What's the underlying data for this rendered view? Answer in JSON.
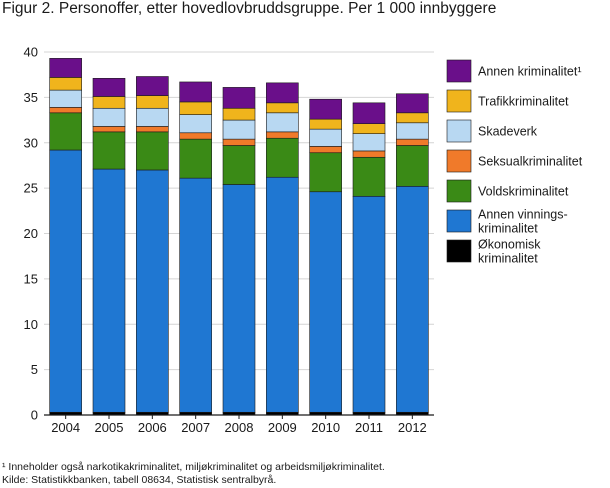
{
  "title": "Figur 2. Personoffer, etter hovedlovbruddsgruppe. Per 1 000 innbyggere",
  "footnotes": [
    "¹ Inneholder også narkotikakriminalitet, miljøkriminalitet og arbeidsmiljøkriminalitet.",
    "Kilde: Statistikkbanken, tabell 08634, Statistisk sentralbyrå."
  ],
  "chart_data": {
    "type": "bar",
    "stacked": true,
    "title": "Figur 2. Personoffer, etter hovedlovbruddsgruppe. Per 1 000 innbyggere",
    "xlabel": "",
    "ylabel": "",
    "ylim": [
      0,
      40
    ],
    "yticks": [
      0,
      5,
      10,
      15,
      20,
      25,
      30,
      35,
      40
    ],
    "grid": true,
    "legend_position": "right",
    "categories": [
      "2004",
      "2005",
      "2006",
      "2007",
      "2008",
      "2009",
      "2010",
      "2011",
      "2012"
    ],
    "series": [
      {
        "name": "Økonomisk kriminalitet",
        "label_lines": [
          "Økonomisk",
          "kriminalitet"
        ],
        "color": "#000000",
        "values": [
          0.3,
          0.3,
          0.3,
          0.3,
          0.3,
          0.3,
          0.3,
          0.3,
          0.3
        ]
      },
      {
        "name": "Annen vinnings-kriminalitet",
        "label_lines": [
          "Annen vinnings-",
          "kriminalitet"
        ],
        "color": "#1f77d2",
        "values": [
          28.9,
          26.8,
          26.7,
          25.8,
          25.1,
          25.9,
          24.3,
          23.8,
          24.9
        ]
      },
      {
        "name": "Voldskriminalitet",
        "label_lines": [
          "Voldskriminalitet"
        ],
        "color": "#3a8a16",
        "values": [
          4.1,
          4.1,
          4.2,
          4.3,
          4.3,
          4.3,
          4.3,
          4.3,
          4.5
        ]
      },
      {
        "name": "Seksualkriminalitet",
        "label_lines": [
          "Seksualkriminalitet"
        ],
        "color": "#f07a2a",
        "values": [
          0.6,
          0.6,
          0.6,
          0.7,
          0.7,
          0.7,
          0.7,
          0.7,
          0.7
        ]
      },
      {
        "name": "Skadeverk",
        "label_lines": [
          "Skadeverk"
        ],
        "color": "#b8d8f2",
        "values": [
          1.9,
          2.0,
          2.0,
          2.0,
          2.1,
          2.1,
          1.9,
          1.9,
          1.8
        ]
      },
      {
        "name": "Trafikkriminalitet",
        "label_lines": [
          "Trafikkriminalitet"
        ],
        "color": "#f0b41c",
        "values": [
          1.4,
          1.3,
          1.4,
          1.4,
          1.3,
          1.1,
          1.1,
          1.1,
          1.1
        ]
      },
      {
        "name": "Annen kriminalitet¹",
        "label_lines": [
          "Annen kriminalitet¹"
        ],
        "color": "#6a0f8a",
        "values": [
          2.1,
          2.0,
          2.1,
          2.2,
          2.3,
          2.2,
          2.2,
          2.3,
          2.1
        ]
      }
    ]
  }
}
